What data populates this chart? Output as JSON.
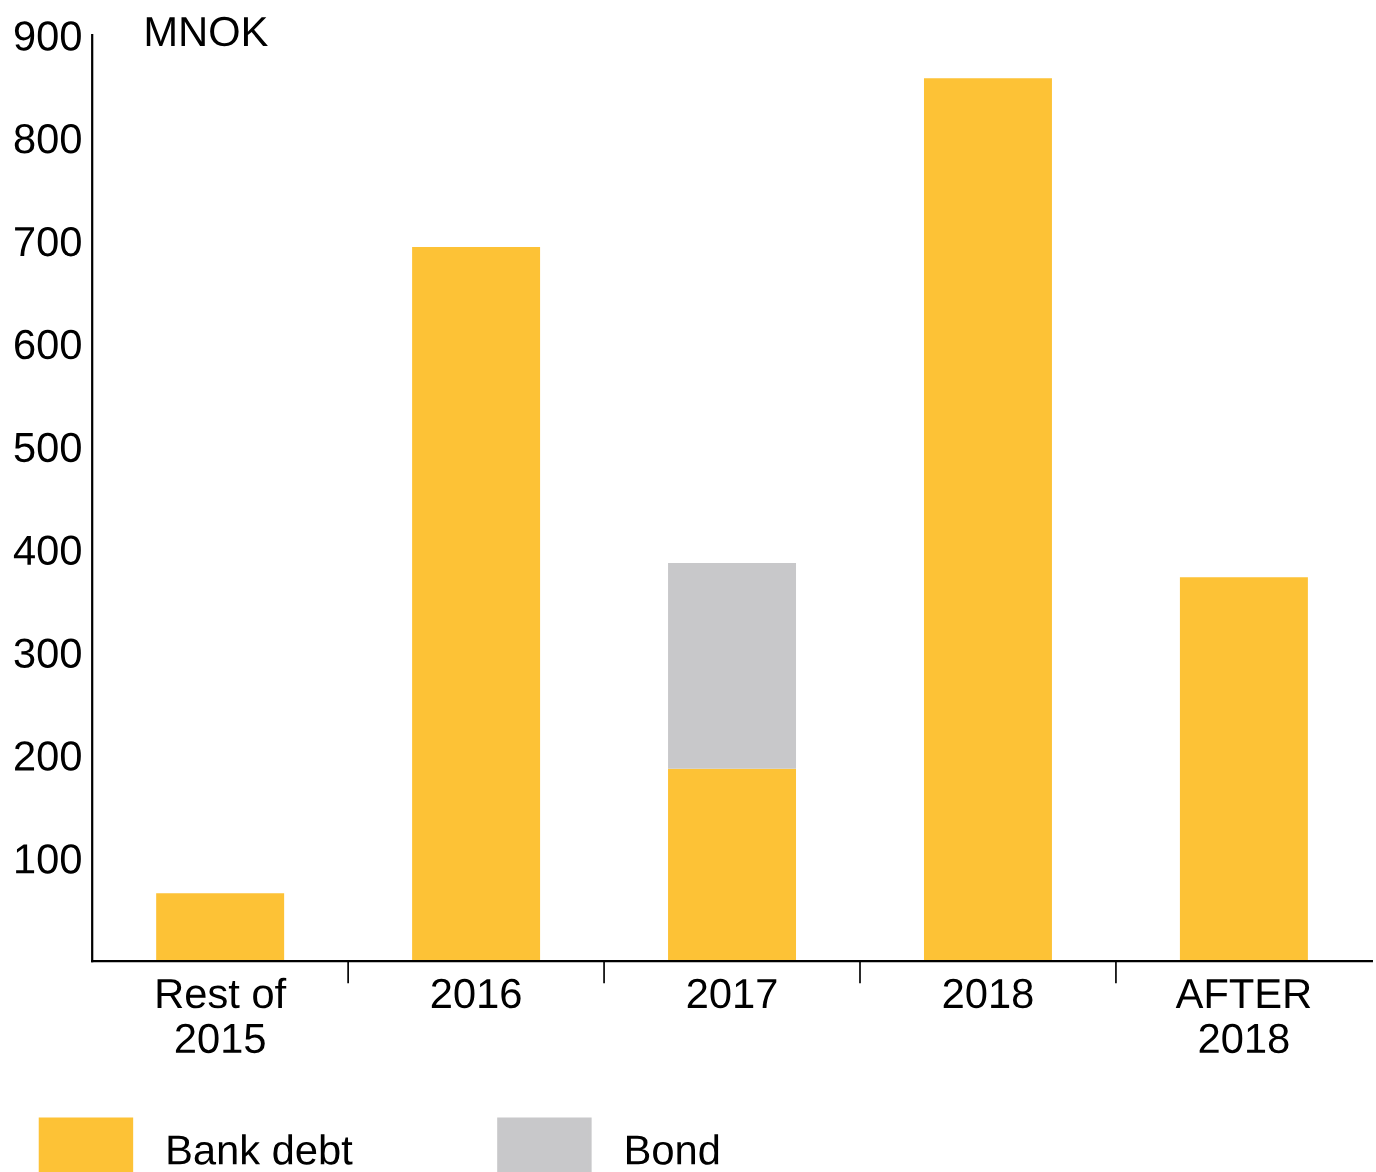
{
  "chart_data": {
    "type": "bar",
    "stacked": true,
    "ylabel": "MNOK",
    "categories": [
      "Rest of\n2015",
      "2016",
      "2017",
      "2018",
      "AFTER\n2018"
    ],
    "series": [
      {
        "name": "Bank debt",
        "color": "#fdc236",
        "values": [
          66,
          694,
          187,
          858,
          373
        ]
      },
      {
        "name": "Bond",
        "color": "#c8c8ca",
        "values": [
          0,
          0,
          200,
          0,
          0
        ]
      }
    ],
    "ylim": [
      0,
      900
    ],
    "yticks": [
      100,
      200,
      300,
      400,
      500,
      600,
      700,
      800,
      900
    ],
    "grid": false,
    "legend": "bottom"
  }
}
